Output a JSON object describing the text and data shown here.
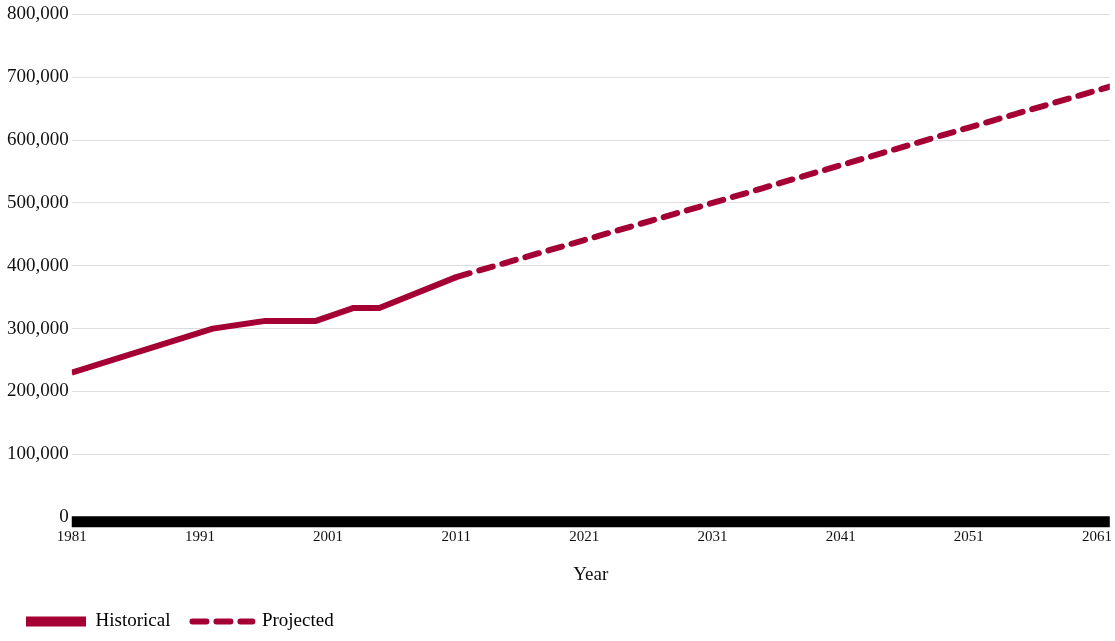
{
  "chart_data": {
    "type": "line",
    "xlabel": "Year",
    "xlim": [
      1981,
      2062
    ],
    "xticks": [
      1981,
      1991,
      2001,
      2011,
      2021,
      2031,
      2041,
      2051,
      2061
    ],
    "ylim": [
      0,
      800000
    ],
    "yticks": [
      {
        "value": 0,
        "label": "0"
      },
      {
        "value": 100000,
        "label": "100,000"
      },
      {
        "value": 200000,
        "label": "200,000"
      },
      {
        "value": 300000,
        "label": "300,000"
      },
      {
        "value": 400000,
        "label": "400,000"
      },
      {
        "value": 500000,
        "label": "500,000"
      },
      {
        "value": 600000,
        "label": "600,000"
      },
      {
        "value": 700000,
        "label": "700,000"
      },
      {
        "value": 800000,
        "label": "800,000"
      }
    ],
    "grid": "y",
    "legend": "bottom",
    "marker": "none",
    "series": [
      {
        "name": "Historical",
        "color": "#a50034",
        "line_style": "solid",
        "x": [
          1981,
          1992,
          1996,
          2000,
          2003,
          2005,
          2011
        ],
        "values": [
          230000,
          300000,
          312000,
          312000,
          333000,
          333000,
          382000
        ]
      },
      {
        "name": "Projected",
        "color": "#a50034",
        "line_style": "dashed",
        "x": [
          2011,
          2021,
          2031,
          2041,
          2051,
          2062
        ],
        "values": [
          382000,
          441000,
          500000,
          560000,
          620000,
          685000
        ]
      }
    ]
  }
}
